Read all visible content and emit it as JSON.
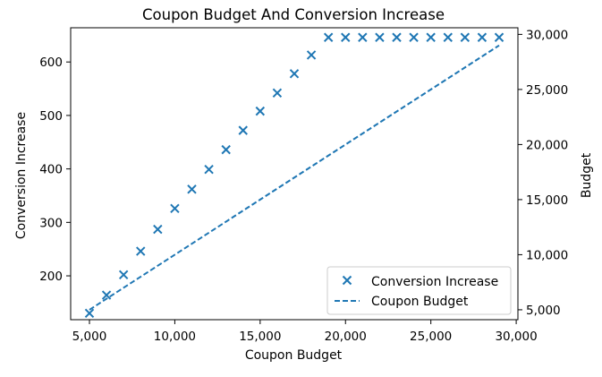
{
  "chart_data": {
    "type": "scatter",
    "title": "Coupon Budget And Conversion Increase",
    "xlabel": "Coupon Budget",
    "ylabel": "Conversion Increase",
    "y2label": "Budget",
    "xlim": [
      3900,
      30100
    ],
    "ylim": [
      118,
      664
    ],
    "y2lim": [
      4100,
      30600
    ],
    "xticks": [
      5000,
      10000,
      15000,
      20000,
      25000,
      30000
    ],
    "xtick_labels": [
      "5,000",
      "10,000",
      "15,000",
      "20,000",
      "25,000",
      "30,000"
    ],
    "yticks": [
      200,
      300,
      400,
      500,
      600
    ],
    "ytick_labels": [
      "200",
      "300",
      "400",
      "500",
      "600"
    ],
    "y2ticks": [
      5000,
      10000,
      15000,
      20000,
      25000,
      30000
    ],
    "y2tick_labels": [
      "5,000",
      "10,000",
      "15,000",
      "20,000",
      "25,000",
      "30,000"
    ],
    "grid": false,
    "legend_position": "bottom-right",
    "color": "#1f77b4",
    "series": [
      {
        "name": "Conversion Increase",
        "type": "scatter",
        "marker": "x",
        "axis": "left",
        "x": [
          5000,
          6000,
          7000,
          8000,
          9000,
          10000,
          11000,
          12000,
          13000,
          14000,
          15000,
          16000,
          17000,
          18000,
          19000,
          20000,
          21000,
          22000,
          23000,
          24000,
          25000,
          26000,
          27000,
          28000,
          29000
        ],
        "y": [
          130,
          164,
          202,
          246,
          287,
          326,
          362,
          399,
          436,
          472,
          508,
          542,
          578,
          613,
          646,
          646,
          646,
          646,
          646,
          646,
          646,
          646,
          646,
          646,
          646
        ]
      },
      {
        "name": "Coupon Budget",
        "type": "line",
        "linestyle": "dashed",
        "axis": "right",
        "x": [
          5000,
          29000
        ],
        "y": [
          5000,
          29000
        ]
      }
    ]
  }
}
